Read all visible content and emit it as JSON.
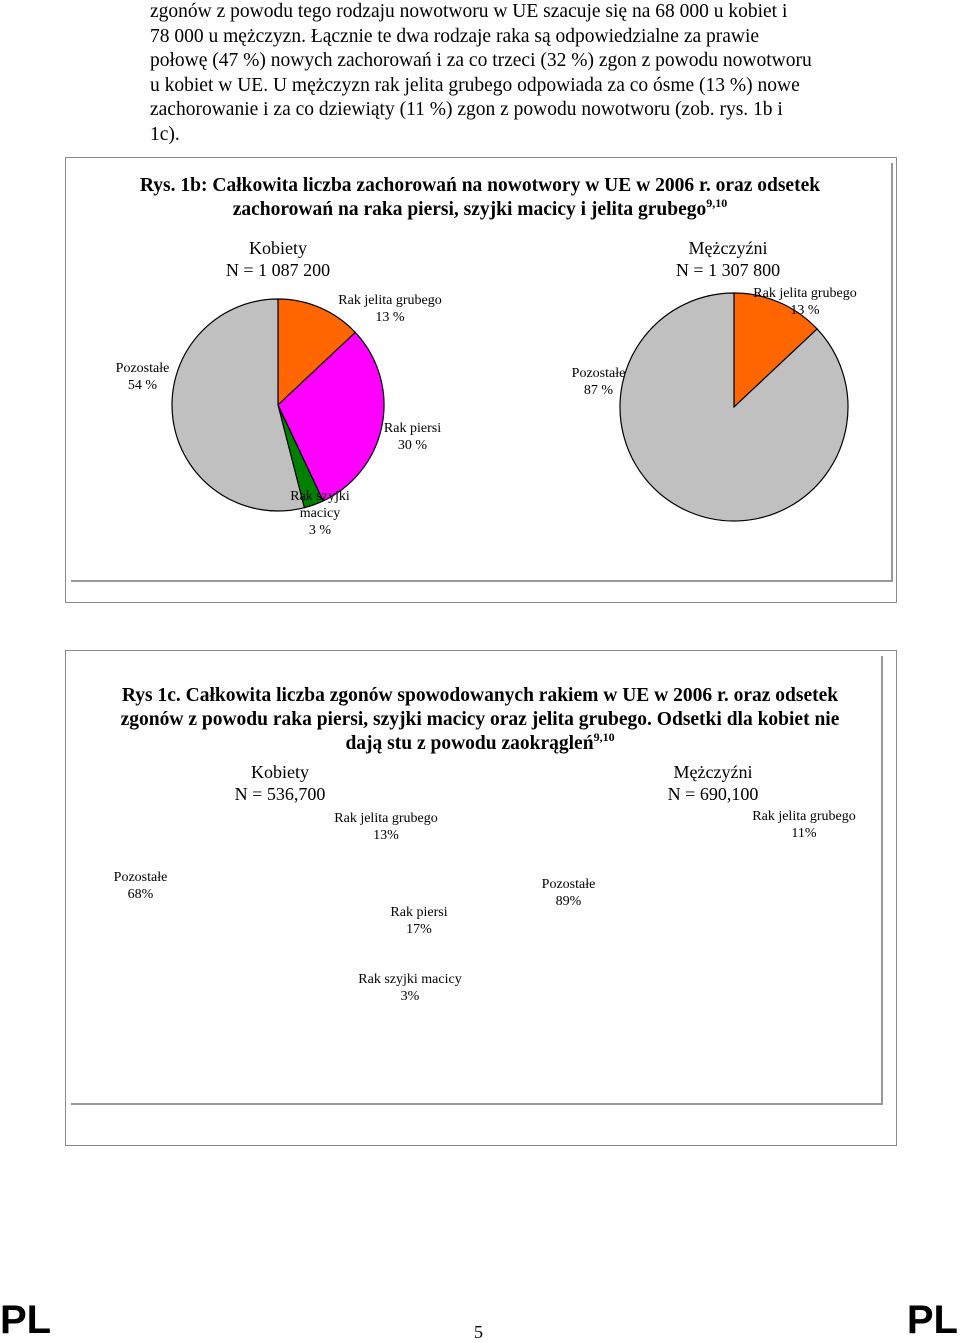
{
  "paragraph": {
    "lines": [
      "zgonów z powodu tego rodzaju nowotworu w UE szacuje się na 68 000 u kobiet i",
      "78 000 u mężczyzn. Łącznie te dwa rodzaje raka są odpowiedzialne za prawie",
      "połowę (47 %) nowych zachorowań i za co trzeci (32 %) zgon z powodu nowotworu",
      "u kobiet w UE. U mężczyzn rak jelita grubego odpowiada za co ósme (13 %) nowe",
      "zachorowanie i za co dziewiąty (11 %) zgon z powodu nowotworu (zob. rys. 1b i",
      "1c)."
    ]
  },
  "figure_1b": {
    "title_line1": "Rys. 1b: Całkowita liczba zachorowań na nowotwory w UE w 2006 r. oraz odsetek",
    "title_line2": "zachorowań na raka piersi, szyjki macicy i jelita grubego",
    "title_sup": "9,10",
    "women_label": "Kobiety",
    "women_n": "N = 1 087 200",
    "men_label": "Mężczyźni",
    "men_n": "N = 1 307 800"
  },
  "figure_1c": {
    "title_line1": "Rys 1c. Całkowita liczba zgonów spowodowanych rakiem w UE w 2006 r. oraz odsetek",
    "title_line2": "zgonów z powodu raka piersi, szyjki macicy oraz jelita grubego. Odsetki dla kobiet nie",
    "title_line3": "dają stu z powodu zaokrągleń",
    "title_sup": "9,10",
    "women_label": "Kobiety",
    "women_n": "N = 536,700",
    "men_label": "Mężczyźni",
    "men_n": "N = 690,100"
  },
  "chart_data": [
    {
      "type": "pie",
      "title": "Kobiety",
      "slices": [
        {
          "label": "Rak jelita grubego",
          "value": 13,
          "value_label": "13 %",
          "color": "#ff6600"
        },
        {
          "label": "Rak piersi",
          "value": 30,
          "value_label": "30 %",
          "color": "#ff00ff"
        },
        {
          "label": "Rak szyjki macicy",
          "value": 3,
          "value_label": "3 %",
          "color": "#008000"
        },
        {
          "label": "Pozostałe",
          "value": 54,
          "value_label": "54 %",
          "color": "#c0c0c0"
        }
      ]
    },
    {
      "type": "pie",
      "title": "Mężczyźni",
      "slices": [
        {
          "label": "Rak jelita grubego",
          "value": 13,
          "value_label": "13 %",
          "color": "#ff6600"
        },
        {
          "label": "Pozostałe",
          "value": 87,
          "value_label": "87 %",
          "color": "#c0c0c0"
        }
      ]
    },
    {
      "type": "pie",
      "title": "Kobiety",
      "slices": [
        {
          "label": "Rak jelita grubego",
          "value": 13,
          "value_label": "13%",
          "color": "#ff6600"
        },
        {
          "label": "Rak piersi",
          "value": 17,
          "value_label": "17%",
          "color": "#ff00ff"
        },
        {
          "label": "Rak szyjki macicy",
          "value": 3,
          "value_label": "3%",
          "color": "#008000"
        },
        {
          "label": "Pozostałe",
          "value": 68,
          "value_label": "68%",
          "color": "#c0c0c0"
        }
      ]
    },
    {
      "type": "pie",
      "title": "Mężczyźni",
      "slices": [
        {
          "label": "Rak jelita grubego",
          "value": 11,
          "value_label": "11%",
          "color": "#ff6600"
        },
        {
          "label": "Pozostałe",
          "value": 89,
          "value_label": "89%",
          "color": "#c0c0c0"
        }
      ]
    }
  ],
  "footer": {
    "left": "PL",
    "right": "PL",
    "page_number": "5"
  }
}
